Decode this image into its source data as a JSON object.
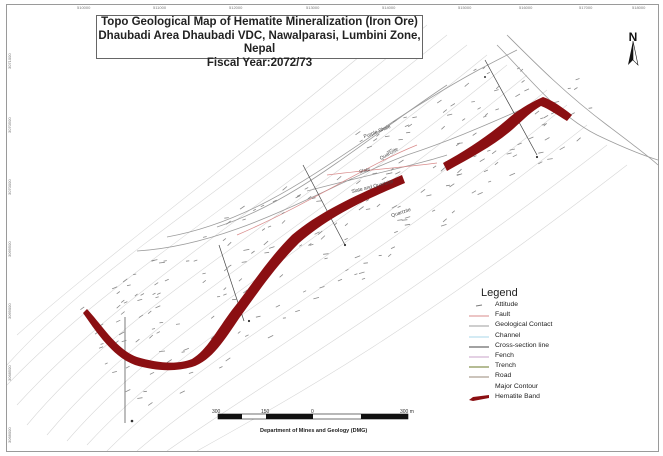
{
  "title": {
    "line1": "Topo Geological Map of Hematite Mineralization (Iron Ore)",
    "line2": "Dhaubadi Area Dhaubadi VDC, Nawalparasi, Lumbini Zone, Nepal",
    "line3": "Fiscal Year:2072/73"
  },
  "north_arrow": {
    "letter": "N"
  },
  "grid_ticks": {
    "top": [
      "510000",
      "511000",
      "512000",
      "513000",
      "514000",
      "515000",
      "516000",
      "517000",
      "518000"
    ],
    "left": [
      "3071000",
      "3070500",
      "3070000",
      "3069500",
      "3069000",
      "3068500",
      "3068000"
    ]
  },
  "rock_labels": {
    "purple_shale": "Purple Shale",
    "quartzite_1": "Quartzite",
    "slate": "Slate",
    "slate_quartzite": "Slate and Quartzite",
    "quartzite_2": "Quartzite"
  },
  "legend": {
    "title": "Legend",
    "items": [
      {
        "label": "Attitude",
        "symbol": "attitude",
        "color": "#7a7a7a"
      },
      {
        "label": "Fault",
        "symbol": "line",
        "color": "#d98b8b"
      },
      {
        "label": "Geological Contact",
        "symbol": "line",
        "color": "#9c9c9c"
      },
      {
        "label": "Channel",
        "symbol": "line",
        "color": "#a8d7e8"
      },
      {
        "label": "Cross-section line",
        "symbol": "line",
        "color": "#444444"
      },
      {
        "label": "Fench",
        "symbol": "line",
        "color": "#c9a3c9"
      },
      {
        "label": "Trench",
        "symbol": "line",
        "color": "#6b7a2a"
      },
      {
        "label": "Road",
        "symbol": "line",
        "color": "#9a8a7a"
      },
      {
        "label": "Major Contour",
        "symbol": "none",
        "color": "#cccccc"
      },
      {
        "label": "Hematite Band",
        "symbol": "band",
        "color": "#8b0f12"
      }
    ]
  },
  "scale_bar": {
    "labels": [
      "300",
      "150",
      "0",
      "300 m"
    ],
    "caption": "Department of Mines and Geology (DMG)"
  },
  "colors": {
    "hematite": "#8b0f12",
    "contour": "#d7d7d7",
    "geo_contact": "#9c9c9c",
    "fault": "#d98b8b",
    "attitude": "#8a8a8a",
    "cross_section": "#444444"
  }
}
